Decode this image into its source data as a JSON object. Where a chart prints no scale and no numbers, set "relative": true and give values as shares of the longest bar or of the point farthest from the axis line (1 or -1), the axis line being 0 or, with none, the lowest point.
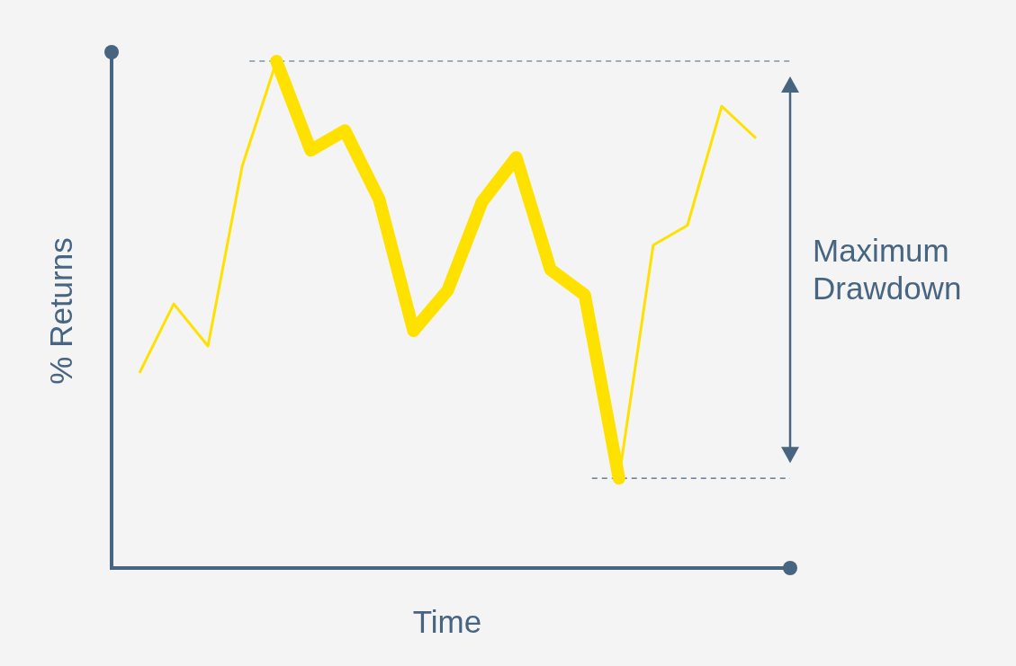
{
  "chart_data": {
    "type": "line",
    "relative": true,
    "xlabel": "Time",
    "ylabel": "% Returns",
    "categories": [
      null,
      null,
      null,
      null,
      null,
      null,
      null,
      null,
      null,
      null,
      null,
      null,
      null,
      null,
      null,
      null,
      null,
      null,
      null
    ],
    "series": [
      {
        "color": "#ffe100",
        "values": [
          0.385,
          0.521,
          0.438,
          0.793,
          1.0,
          null,
          null,
          null,
          null,
          null,
          null,
          null,
          null,
          null,
          0.177,
          0.637,
          0.676,
          0.911,
          0.848
        ]
      },
      {
        "color": "#ffe100",
        "values": [
          null,
          null,
          null,
          null,
          1.0,
          0.824,
          0.863,
          0.727,
          0.468,
          0.548,
          0.722,
          0.81,
          0.589,
          0.539,
          0.177,
          null,
          null,
          null,
          null
        ]
      }
    ],
    "ref_lines": [
      {
        "axis": "y",
        "value": 1.0,
        "line_style": "dashed",
        "color": "#476580"
      },
      {
        "axis": "y",
        "value": 0.177,
        "line_style": "dashed",
        "color": "#476580"
      }
    ],
    "annotations": [
      "Maximum Drawdown"
    ]
  }
}
